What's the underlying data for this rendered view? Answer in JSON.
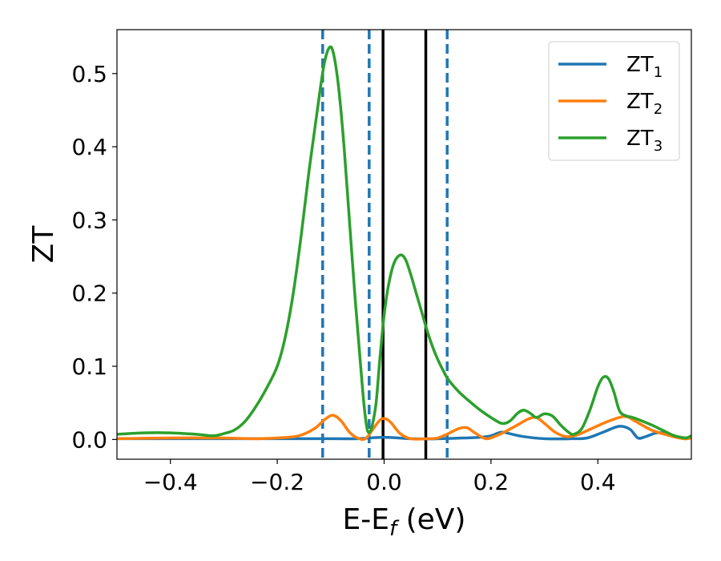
{
  "chart_data": {
    "type": "line",
    "xlabel": "E-E",
    "xlabel_sub": "f",
    "xlabel_unit": " (eV)",
    "ylabel": "ZT",
    "xlim": [
      -0.5,
      0.575
    ],
    "ylim": [
      -0.027,
      0.56
    ],
    "x_ticks": [
      -0.4,
      -0.2,
      0.0,
      0.2,
      0.4
    ],
    "x_tick_labels": [
      "−0.4",
      "−0.2",
      "0.0",
      "0.2",
      "0.4"
    ],
    "y_ticks": [
      0.0,
      0.1,
      0.2,
      0.3,
      0.4,
      0.5
    ],
    "y_tick_labels": [
      "0.0",
      "0.1",
      "0.2",
      "0.3",
      "0.4",
      "0.5"
    ],
    "grid": false,
    "legend_position": "top-right",
    "vlines": [
      {
        "x": -0.115,
        "style": "dashed",
        "color": "#1f77b4"
      },
      {
        "x": -0.028,
        "style": "dashed",
        "color": "#1f77b4"
      },
      {
        "x": 0.118,
        "style": "dashed",
        "color": "#1f77b4"
      },
      {
        "x": -0.002,
        "style": "solid",
        "color": "#000000"
      },
      {
        "x": 0.078,
        "style": "solid",
        "color": "#000000"
      }
    ],
    "series": [
      {
        "name": "ZT",
        "sub": "1",
        "color": "#1f77b4",
        "points": [
          [
            -0.5,
            0.001
          ],
          [
            -0.3,
            0.001
          ],
          [
            -0.1,
            0.001
          ],
          [
            -0.05,
            0.001
          ],
          [
            0.0,
            0.003
          ],
          [
            0.05,
            0.001
          ],
          [
            0.1,
            0.001
          ],
          [
            0.15,
            0.002
          ],
          [
            0.18,
            0.003
          ],
          [
            0.2,
            0.005
          ],
          [
            0.22,
            0.01
          ],
          [
            0.24,
            0.007
          ],
          [
            0.26,
            0.004
          ],
          [
            0.3,
            0.001
          ],
          [
            0.35,
            0.001
          ],
          [
            0.38,
            0.002
          ],
          [
            0.41,
            0.01
          ],
          [
            0.44,
            0.018
          ],
          [
            0.46,
            0.014
          ],
          [
            0.475,
            0.002
          ],
          [
            0.49,
            0.004
          ],
          [
            0.51,
            0.009
          ],
          [
            0.53,
            0.008
          ],
          [
            0.55,
            0.003
          ],
          [
            0.575,
            0.002
          ]
        ]
      },
      {
        "name": "ZT",
        "sub": "2",
        "color": "#ff7f0e",
        "points": [
          [
            -0.5,
            0.001
          ],
          [
            -0.4,
            0.002
          ],
          [
            -0.3,
            0.002
          ],
          [
            -0.25,
            0.001
          ],
          [
            -0.2,
            0.002
          ],
          [
            -0.16,
            0.005
          ],
          [
            -0.13,
            0.015
          ],
          [
            -0.11,
            0.028
          ],
          [
            -0.095,
            0.033
          ],
          [
            -0.08,
            0.025
          ],
          [
            -0.065,
            0.01
          ],
          [
            -0.05,
            0.002
          ],
          [
            -0.035,
            0.001
          ],
          [
            -0.02,
            0.015
          ],
          [
            -0.005,
            0.028
          ],
          [
            0.01,
            0.025
          ],
          [
            0.03,
            0.008
          ],
          [
            0.05,
            0.001
          ],
          [
            0.08,
            0.001
          ],
          [
            0.1,
            0.002
          ],
          [
            0.12,
            0.008
          ],
          [
            0.14,
            0.015
          ],
          [
            0.155,
            0.016
          ],
          [
            0.17,
            0.009
          ],
          [
            0.19,
            0.001
          ],
          [
            0.21,
            0.005
          ],
          [
            0.23,
            0.012
          ],
          [
            0.25,
            0.02
          ],
          [
            0.27,
            0.028
          ],
          [
            0.285,
            0.03
          ],
          [
            0.3,
            0.022
          ],
          [
            0.32,
            0.01
          ],
          [
            0.34,
            0.004
          ],
          [
            0.36,
            0.006
          ],
          [
            0.38,
            0.012
          ],
          [
            0.41,
            0.022
          ],
          [
            0.44,
            0.03
          ],
          [
            0.455,
            0.031
          ],
          [
            0.47,
            0.025
          ],
          [
            0.5,
            0.013
          ],
          [
            0.53,
            0.006
          ],
          [
            0.56,
            0.001
          ],
          [
            0.575,
            0.002
          ]
        ]
      },
      {
        "name": "ZT",
        "sub": "3",
        "color": "#2ca02c",
        "points": [
          [
            -0.5,
            0.007
          ],
          [
            -0.45,
            0.009
          ],
          [
            -0.4,
            0.009
          ],
          [
            -0.35,
            0.007
          ],
          [
            -0.32,
            0.005
          ],
          [
            -0.3,
            0.008
          ],
          [
            -0.28,
            0.013
          ],
          [
            -0.26,
            0.025
          ],
          [
            -0.24,
            0.045
          ],
          [
            -0.22,
            0.07
          ],
          [
            -0.2,
            0.1
          ],
          [
            -0.185,
            0.14
          ],
          [
            -0.17,
            0.2
          ],
          [
            -0.155,
            0.28
          ],
          [
            -0.14,
            0.37
          ],
          [
            -0.125,
            0.45
          ],
          [
            -0.113,
            0.51
          ],
          [
            -0.103,
            0.535
          ],
          [
            -0.095,
            0.528
          ],
          [
            -0.085,
            0.48
          ],
          [
            -0.075,
            0.4
          ],
          [
            -0.065,
            0.3
          ],
          [
            -0.055,
            0.2
          ],
          [
            -0.045,
            0.11
          ],
          [
            -0.038,
            0.05
          ],
          [
            -0.032,
            0.015
          ],
          [
            -0.027,
            0.01
          ],
          [
            -0.022,
            0.02
          ],
          [
            -0.015,
            0.05
          ],
          [
            -0.008,
            0.11
          ],
          [
            0.0,
            0.17
          ],
          [
            0.008,
            0.21
          ],
          [
            0.018,
            0.24
          ],
          [
            0.03,
            0.252
          ],
          [
            0.04,
            0.246
          ],
          [
            0.05,
            0.225
          ],
          [
            0.06,
            0.2
          ],
          [
            0.07,
            0.175
          ],
          [
            0.08,
            0.15
          ],
          [
            0.09,
            0.128
          ],
          [
            0.1,
            0.11
          ],
          [
            0.11,
            0.095
          ],
          [
            0.12,
            0.082
          ],
          [
            0.14,
            0.065
          ],
          [
            0.16,
            0.052
          ],
          [
            0.18,
            0.04
          ],
          [
            0.2,
            0.03
          ],
          [
            0.22,
            0.022
          ],
          [
            0.235,
            0.025
          ],
          [
            0.25,
            0.036
          ],
          [
            0.262,
            0.04
          ],
          [
            0.275,
            0.035
          ],
          [
            0.285,
            0.03
          ],
          [
            0.3,
            0.035
          ],
          [
            0.315,
            0.032
          ],
          [
            0.33,
            0.02
          ],
          [
            0.345,
            0.01
          ],
          [
            0.355,
            0.007
          ],
          [
            0.37,
            0.015
          ],
          [
            0.385,
            0.04
          ],
          [
            0.4,
            0.072
          ],
          [
            0.41,
            0.085
          ],
          [
            0.42,
            0.083
          ],
          [
            0.43,
            0.065
          ],
          [
            0.44,
            0.04
          ],
          [
            0.45,
            0.033
          ],
          [
            0.465,
            0.03
          ],
          [
            0.48,
            0.026
          ],
          [
            0.5,
            0.02
          ],
          [
            0.52,
            0.013
          ],
          [
            0.54,
            0.006
          ],
          [
            0.555,
            0.003
          ],
          [
            0.565,
            0.002
          ],
          [
            0.575,
            0.005
          ]
        ]
      }
    ]
  }
}
